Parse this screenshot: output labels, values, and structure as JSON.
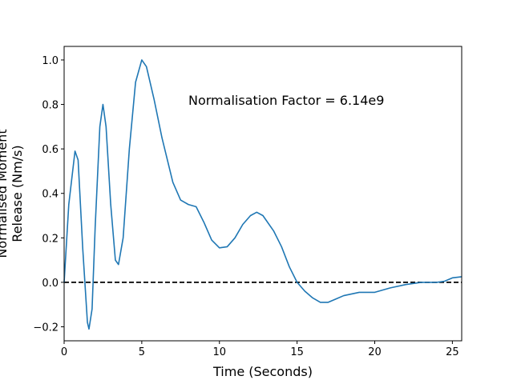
{
  "chart_data": {
    "type": "line",
    "xlabel": "Time (Seconds)",
    "ylabel": [
      "Normalised Moment",
      "Release (Nm/s)"
    ],
    "annotation": "Normalisation Factor = 6.14e9",
    "x": [
      0,
      0.3,
      0.7,
      0.9,
      1.2,
      1.5,
      1.6,
      1.8,
      2.0,
      2.3,
      2.5,
      2.7,
      3.0,
      3.3,
      3.5,
      3.8,
      4.2,
      4.6,
      5.0,
      5.3,
      5.8,
      6.3,
      7.0,
      7.5,
      8.0,
      8.5,
      9.0,
      9.5,
      10.0,
      10.5,
      11.0,
      11.5,
      12.0,
      12.4,
      12.8,
      13.5,
      14.0,
      14.5,
      15.0,
      15.5,
      16.0,
      16.5,
      17.0,
      17.5,
      18.0,
      19.0,
      20.0,
      21.0,
      22.0,
      23.0,
      24.0,
      24.5,
      25.0,
      25.6
    ],
    "series": [
      {
        "color": "#1f77b4",
        "values": [
          0.0,
          0.35,
          0.59,
          0.55,
          0.15,
          -0.18,
          -0.21,
          -0.12,
          0.25,
          0.7,
          0.8,
          0.7,
          0.35,
          0.1,
          0.08,
          0.2,
          0.6,
          0.9,
          1.0,
          0.97,
          0.82,
          0.65,
          0.45,
          0.37,
          0.35,
          0.34,
          0.27,
          0.19,
          0.155,
          0.16,
          0.2,
          0.26,
          0.3,
          0.315,
          0.3,
          0.23,
          0.16,
          0.07,
          0.0,
          -0.04,
          -0.07,
          -0.09,
          -0.09,
          -0.075,
          -0.06,
          -0.045,
          -0.045,
          -0.025,
          -0.01,
          0.0,
          0.0,
          0.005,
          0.02,
          0.025
        ]
      }
    ],
    "hline": 0,
    "xlim": [
      0,
      25.6
    ],
    "ylim": [
      -0.263,
      1.061
    ],
    "xticks": [
      0,
      5,
      10,
      15,
      20,
      25
    ],
    "yticks": [
      {
        "value": -0.2,
        "label": "−0.2"
      },
      {
        "value": 0,
        "label": "0.0"
      },
      {
        "value": 0.2,
        "label": "0.2"
      },
      {
        "value": 0.4,
        "label": "0.4"
      },
      {
        "value": 0.6,
        "label": "0.6"
      },
      {
        "value": 0.8,
        "label": "0.8"
      },
      {
        "value": 1.0,
        "label": "1.0"
      }
    ]
  }
}
